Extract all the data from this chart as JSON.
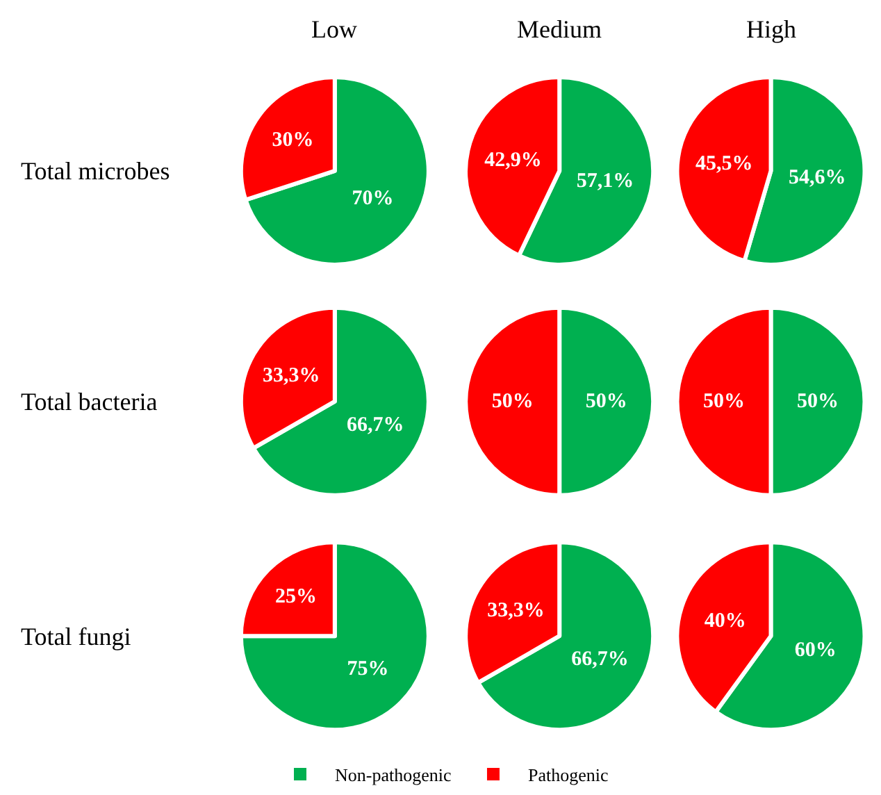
{
  "chart_data": [
    {
      "type": "pie",
      "title": "Low",
      "ylabel": "Total microbes",
      "categories": [
        "Non-pathogenic",
        "Pathogenic"
      ],
      "values": [
        70,
        30
      ],
      "colors": [
        "#00b050",
        "#ff0000"
      ],
      "value_labels": [
        "70%",
        "30%"
      ],
      "legend": "bottom"
    },
    {
      "type": "pie",
      "title": "Medium",
      "values": [
        57.1,
        42.9
      ],
      "colors": [
        "#00b050",
        "#ff0000"
      ],
      "value_labels": [
        "57,1%",
        "42,9%"
      ]
    },
    {
      "type": "pie",
      "title": "High",
      "values": [
        54.6,
        45.5
      ],
      "colors": [
        "#00b050",
        "#ff0000"
      ],
      "value_labels": [
        "54,6%",
        "45,5%"
      ]
    },
    {
      "type": "pie",
      "ylabel": "Total bacteria",
      "values": [
        66.7,
        33.3
      ],
      "colors": [
        "#00b050",
        "#ff0000"
      ],
      "value_labels": [
        "66,7%",
        "33,3%"
      ]
    },
    {
      "type": "pie",
      "values": [
        50,
        50
      ],
      "colors": [
        "#00b050",
        "#ff0000"
      ],
      "value_labels": [
        "50%",
        "50%"
      ]
    },
    {
      "type": "pie",
      "values": [
        50,
        50
      ],
      "colors": [
        "#00b050",
        "#ff0000"
      ],
      "value_labels": [
        "50%",
        "50%"
      ]
    },
    {
      "type": "pie",
      "ylabel": "Total fungi",
      "values": [
        75,
        25
      ],
      "colors": [
        "#00b050",
        "#ff0000"
      ],
      "value_labels": [
        "75%",
        "25%"
      ]
    },
    {
      "type": "pie",
      "values": [
        66.7,
        33.3
      ],
      "colors": [
        "#00b050",
        "#ff0000"
      ],
      "value_labels": [
        "66,7%",
        "33,3%"
      ]
    },
    {
      "type": "pie",
      "values": [
        60,
        40
      ],
      "colors": [
        "#00b050",
        "#ff0000"
      ],
      "value_labels": [
        "60%",
        "40%"
      ]
    }
  ]
}
